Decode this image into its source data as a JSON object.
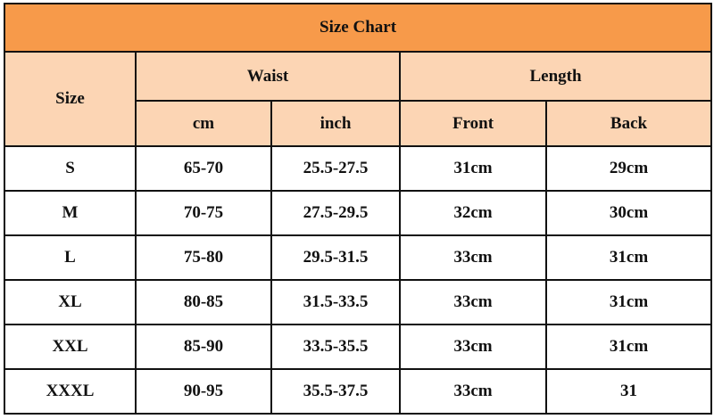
{
  "title": "Size Chart",
  "headers": {
    "size": "Size",
    "waist": "Waist",
    "length": "Length",
    "waist_cm": "cm",
    "waist_inch": "inch",
    "front": "Front",
    "back": "Back"
  },
  "colors": {
    "title_bg": "#f79a4a",
    "header_bg": "#fcd5b4"
  },
  "rows": [
    {
      "size": "S",
      "cm": "65-70",
      "inch": "25.5-27.5",
      "front": "31cm",
      "back": "29cm"
    },
    {
      "size": "M",
      "cm": "70-75",
      "inch": "27.5-29.5",
      "front": "32cm",
      "back": "30cm"
    },
    {
      "size": "L",
      "cm": "75-80",
      "inch": "29.5-31.5",
      "front": "33cm",
      "back": "31cm"
    },
    {
      "size": "XL",
      "cm": "80-85",
      "inch": "31.5-33.5",
      "front": "33cm",
      "back": "31cm"
    },
    {
      "size": "XXL",
      "cm": "85-90",
      "inch": "33.5-35.5",
      "front": "33cm",
      "back": "31cm"
    },
    {
      "size": "XXXL",
      "cm": "90-95",
      "inch": "35.5-37.5",
      "front": "33cm",
      "back": "31"
    }
  ]
}
